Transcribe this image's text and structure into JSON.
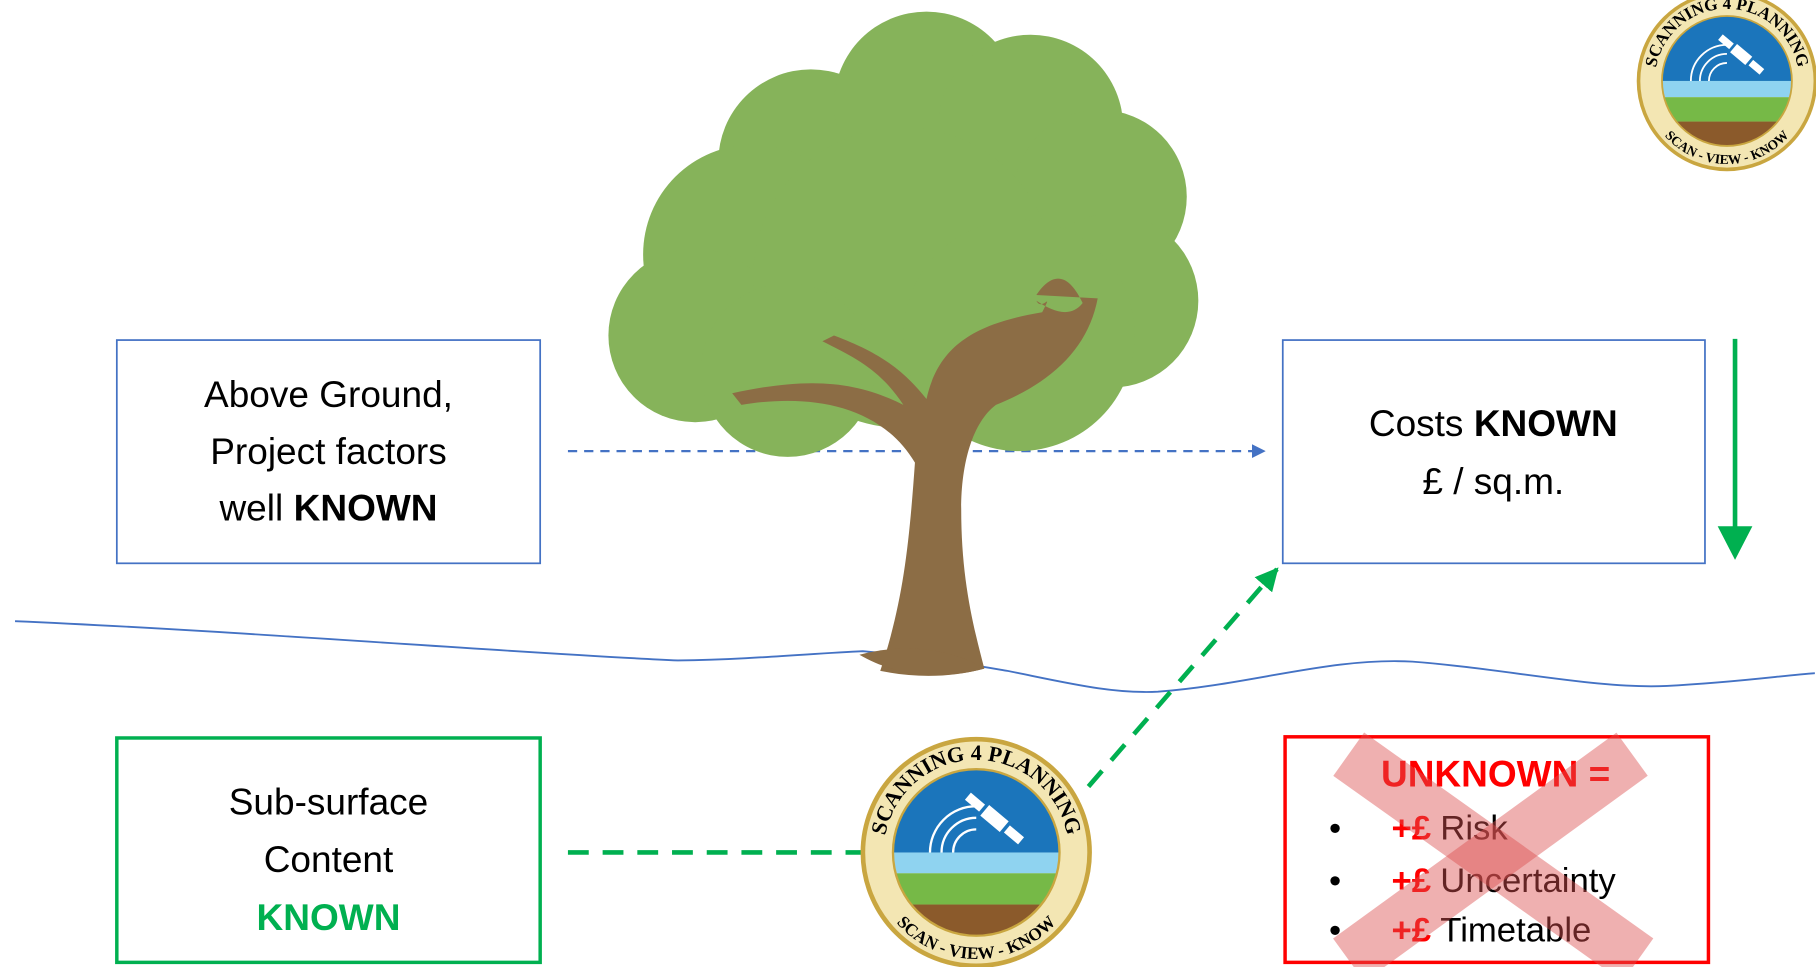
{
  "above_ground": {
    "lines": [
      "Above Ground,",
      "Project factors",
      "well"
    ],
    "emphasis": "KNOWN"
  },
  "costs": {
    "label": "Costs",
    "emphasis": "KNOWN",
    "unit": "£ / sq.m."
  },
  "subsurface": {
    "lines": [
      "Sub-surface",
      "Content"
    ],
    "emphasis": "KNOWN"
  },
  "unknown": {
    "title": "UNKNOWN =",
    "items": [
      {
        "prefix": "+£",
        "text": "Risk"
      },
      {
        "prefix": "+£",
        "text": "Uncertainty"
      },
      {
        "prefix": "+£",
        "text": "Timetable"
      }
    ]
  },
  "logo": {
    "top": "SCANNING 4 PLANNING",
    "bottom": "SCAN - VIEW - KNOW"
  }
}
